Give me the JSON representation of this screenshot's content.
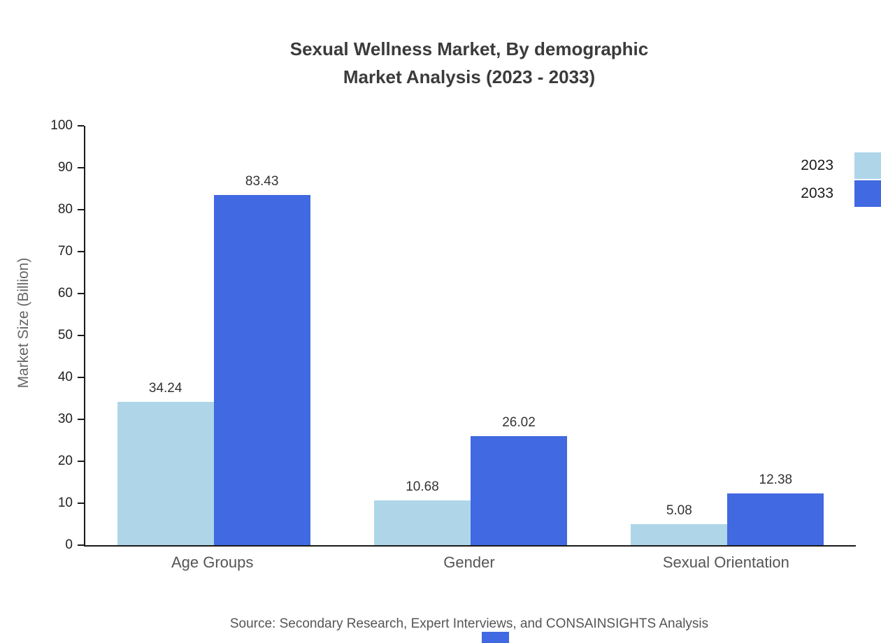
{
  "title": {
    "line1": "Sexual Wellness Market, By demographic",
    "line2": "Market Analysis (2023 - 2033)"
  },
  "source": "Source: Secondary Research, Expert Interviews, and CONSAINSIGHTS Analysis",
  "colors": {
    "series_2023": "#aed6e8",
    "series_2033": "#4169e1",
    "axis": "#1a1a1a",
    "title_text": "#3b3b3b",
    "muted_text": "#555555"
  },
  "chart_data": {
    "type": "bar",
    "title": "Sexual Wellness Market, By demographic Market Analysis (2023 - 2033)",
    "categories": [
      "Age Groups",
      "Gender",
      "Sexual Orientation"
    ],
    "series": [
      {
        "name": "2023",
        "color": "#aed6e8",
        "values": [
          34.24,
          10.68,
          5.08
        ]
      },
      {
        "name": "2033",
        "color": "#4169e1",
        "values": [
          83.43,
          26.02,
          12.38
        ]
      }
    ],
    "xlabel": "",
    "ylabel": "Market Size (Billion)",
    "ylim": [
      0,
      100
    ],
    "ytick_step": 10,
    "grid": false,
    "legend_position": "top-right"
  }
}
